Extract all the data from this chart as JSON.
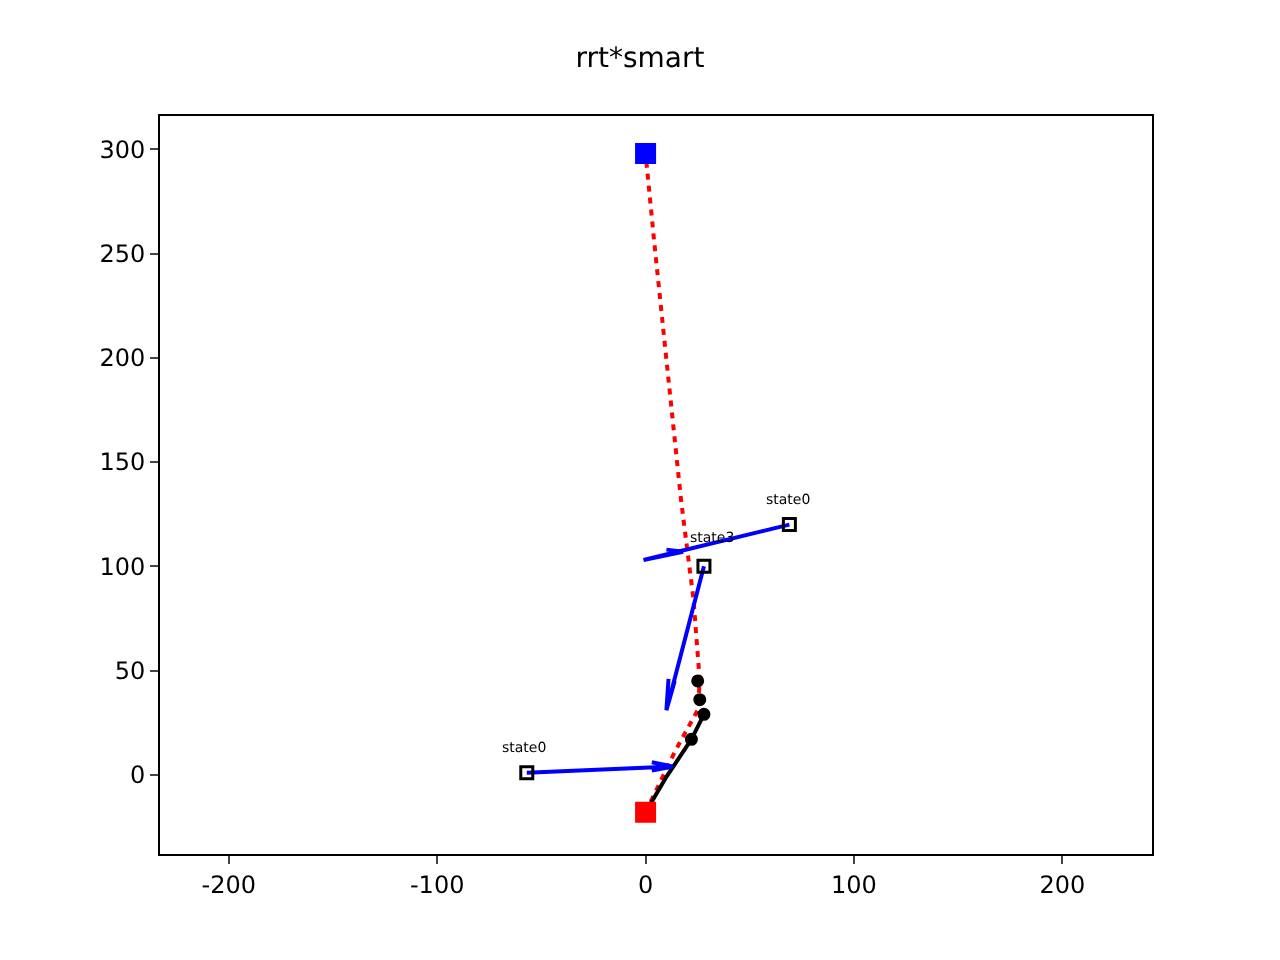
{
  "chart_data": {
    "type": "line",
    "title": "rrt*smart",
    "xlim": [
      -233,
      243
    ],
    "ylim": [
      -38,
      316
    ],
    "xticks": [
      -200,
      -100,
      0,
      100,
      200
    ],
    "yticks": [
      0,
      50,
      100,
      150,
      200,
      250,
      300
    ],
    "series": [
      {
        "color": "#ff0000",
        "line_style": "dotted",
        "marker": "none",
        "x": [
          0,
          14,
          25,
          26,
          23,
          17,
          10,
          4,
          0
        ],
        "values": [
          -18,
          11,
          31,
          45,
          84,
          132,
          199,
          257,
          298
        ]
      },
      {
        "color": "#000000",
        "line_style": "solid",
        "marker": "none",
        "x": [
          0,
          10,
          22,
          28
        ],
        "values": [
          -18,
          -1,
          17,
          29
        ]
      },
      {
        "type": "scatter",
        "color": "#000000",
        "marker": "circle",
        "x": [
          25,
          26,
          28,
          22
        ],
        "values": [
          45,
          36,
          29,
          17
        ]
      },
      {
        "type": "line",
        "color": "#0000ff",
        "line_style": "solid",
        "marker": "none",
        "x": [
          -57,
          13,
          3,
          13,
          3
        ],
        "values": [
          1,
          4,
          6,
          4,
          2
        ]
      },
      {
        "type": "line",
        "color": "#0000ff",
        "line_style": "solid",
        "marker": "none",
        "x": [
          69,
          -1,
          18,
          10,
          18
        ],
        "values": [
          120,
          103,
          107,
          108,
          107
        ]
      },
      {
        "type": "line",
        "color": "#0000ff",
        "line_style": "solid",
        "marker": "none",
        "x": [
          28,
          10,
          14,
          10,
          11
        ],
        "values": [
          100,
          31,
          45,
          31,
          46
        ]
      },
      {
        "type": "scatter",
        "color": "#000000",
        "marker": "square-open",
        "x": [
          -57,
          69,
          28
        ],
        "values": [
          1,
          120,
          100
        ]
      },
      {
        "type": "scatter",
        "color": "#0000ff",
        "marker": "square",
        "x": [
          0
        ],
        "values": [
          298
        ]
      },
      {
        "type": "scatter",
        "color": "#ff0000",
        "marker": "square",
        "x": [
          0
        ],
        "values": [
          -18
        ]
      }
    ],
    "annotations": [
      {
        "text": "state0",
        "x": -58,
        "y": 7
      },
      {
        "text": "state3",
        "x": 32,
        "y": 108
      },
      {
        "text": "state0",
        "x": 68,
        "y": 126
      }
    ]
  }
}
